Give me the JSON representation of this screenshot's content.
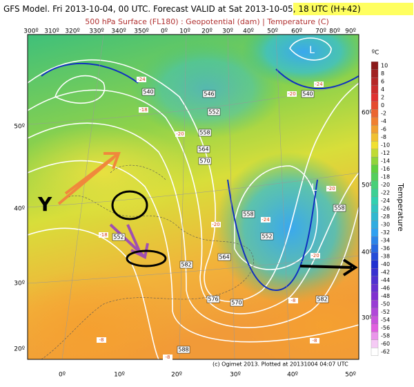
{
  "header": {
    "title_start": "GFS Model. Fri 2013-10-04, 00 UTC. Forecast VALID at Sat 2013-1",
    "title_highlight": "0-05, 18 UTC (H+42)",
    "subtitle": "500 hPa Surface (FL180) : Geopotential (dam) | Temperature (C)"
  },
  "map": {
    "top_longitudes": [
      "300º",
      "310º",
      "320º",
      "330º",
      "340º",
      "350º",
      "0º",
      "10º",
      "20º",
      "30º",
      "40º",
      "50º",
      "60º",
      "70º",
      "80º",
      "90º"
    ],
    "bottom_longitudes": [
      "0º",
      "10º",
      "20º",
      "30º",
      "40º",
      "50º"
    ],
    "left_latitudes": [
      "50º",
      "40º",
      "30º",
      "20º"
    ],
    "right_latitudes": [
      "60º",
      "50º",
      "40º",
      "30º"
    ],
    "contour_labels": [
      "540",
      "546",
      "552",
      "558",
      "564",
      "570",
      "540",
      "558",
      "552",
      "564",
      "576",
      "570",
      "582",
      "558",
      "582",
      "588",
      "552"
    ],
    "temp_labels": [
      "-20",
      "-20",
      "-24",
      "-24",
      "-18",
      "-18",
      "-20",
      "-24",
      "-20",
      "-20",
      "-8",
      "-8",
      "-8",
      "-8"
    ],
    "lows": [
      "L",
      "L"
    ],
    "annotation": "Y",
    "credit": "(c) Ogimet 2013. Plotted at 20131004 04:07 UTC"
  },
  "legend": {
    "unit": "ºC",
    "title": "Temperature",
    "ticks": [
      10,
      8,
      6,
      4,
      2,
      0,
      -2,
      -4,
      -6,
      -8,
      -10,
      -12,
      -14,
      -16,
      -18,
      -20,
      -22,
      -24,
      -26,
      -28,
      -30,
      -32,
      -34,
      -36,
      -38,
      -40,
      -42,
      -44,
      -46,
      -48,
      -50,
      -52,
      -54,
      -56,
      -58,
      -60,
      -62
    ]
  }
}
